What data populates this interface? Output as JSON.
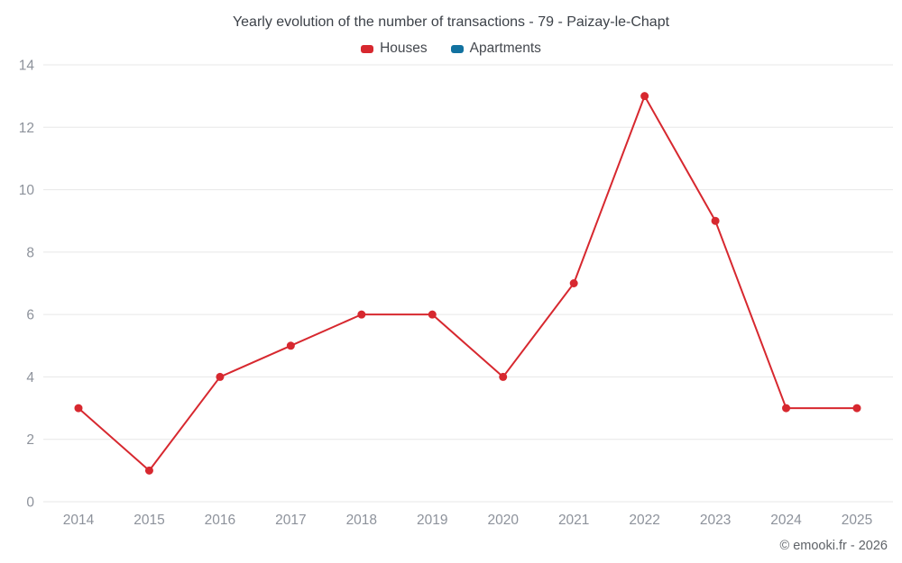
{
  "chart": {
    "title": "Yearly evolution of the number of transactions - 79 - Paizay-le-Chapt",
    "legend": [
      {
        "label": "Houses",
        "color": "#d7282f"
      },
      {
        "label": "Apartments",
        "color": "#1272a0"
      }
    ],
    "copyright": "© emooki.fr - 2026"
  },
  "chart_data": {
    "type": "line",
    "title": "Yearly evolution of the number of transactions - 79 - Paizay-le-Chapt",
    "categories": [
      "2014",
      "2015",
      "2016",
      "2017",
      "2018",
      "2019",
      "2020",
      "2021",
      "2022",
      "2023",
      "2024",
      "2025"
    ],
    "series": [
      {
        "name": "Houses",
        "color": "#d7282f",
        "values": [
          3,
          1,
          4,
          5,
          6,
          6,
          4,
          7,
          13,
          9,
          3,
          3
        ]
      },
      {
        "name": "Apartments",
        "color": "#1272a0",
        "values": []
      }
    ],
    "xlabel": "",
    "ylabel": "",
    "ylim": [
      0,
      14
    ],
    "yticks": [
      0,
      2,
      4,
      6,
      8,
      10,
      12,
      14
    ],
    "grid": "horizontal",
    "grid_color": "#e7e7e7",
    "tick_color": "#8d929b",
    "legend_position": "top"
  }
}
